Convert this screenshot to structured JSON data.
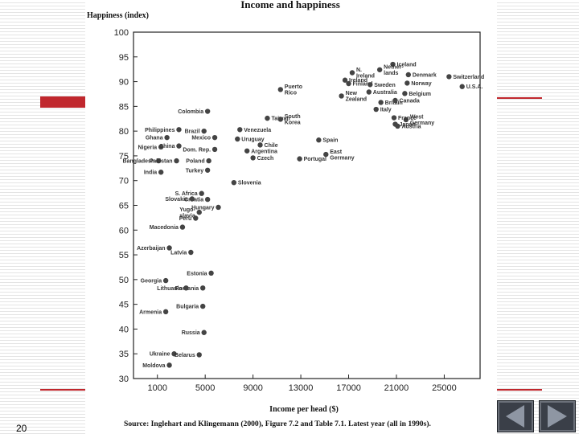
{
  "slide": {
    "page_number": "20",
    "accent_color": "#c0272d",
    "nav": {
      "prev_icon": "triangle-left-icon",
      "next_icon": "triangle-right-icon"
    }
  },
  "chart_data": {
    "type": "scatter",
    "title": "Income and happiness",
    "ylabel": "Happiness (index)",
    "xlabel": "Income per head ($)",
    "source": "Source: Inglehart and Klingemann (2000), Figure 7.2 and Table 7.1. Latest year (all in 1990s).",
    "xlim": [
      -1000,
      28000
    ],
    "ylim": [
      30,
      100
    ],
    "xticks": [
      1000,
      5000,
      9000,
      13000,
      17000,
      21000,
      25000
    ],
    "xtick_labels": [
      "1000",
      "5000",
      "9000",
      "13000",
      "17000",
      "21000",
      "25000"
    ],
    "yticks": [
      30,
      35,
      40,
      45,
      50,
      55,
      60,
      65,
      70,
      75,
      80,
      85,
      90,
      95,
      100
    ],
    "ytick_labels": [
      "30",
      "35",
      "40",
      "45",
      "50",
      "55",
      "60",
      "65",
      "70",
      "75",
      "80",
      "85",
      "90",
      "95",
      "100"
    ],
    "grid": false,
    "point_color": "#444444",
    "points": [
      {
        "label": "Iceland",
        "x": 20700,
        "y": 93.5
      },
      {
        "label": "N. Ireland",
        "x": 17300,
        "y": 91.8
      },
      {
        "label": "Nether- lands",
        "x": 19600,
        "y": 92.4
      },
      {
        "label": "Denmark",
        "x": 22000,
        "y": 91.4
      },
      {
        "label": "Switzerland",
        "x": 25400,
        "y": 91.0
      },
      {
        "label": "Ireland",
        "x": 16700,
        "y": 90.3
      },
      {
        "label": "Finland",
        "x": 17000,
        "y": 89.6
      },
      {
        "label": "Sweden",
        "x": 18800,
        "y": 89.4
      },
      {
        "label": "Norway",
        "x": 21900,
        "y": 89.7
      },
      {
        "label": "U.S.A.",
        "x": 26500,
        "y": 89.0
      },
      {
        "label": "Puerto Rico",
        "x": 11300,
        "y": 88.4
      },
      {
        "label": "Australia",
        "x": 18700,
        "y": 87.9
      },
      {
        "label": "New Zealand",
        "x": 16400,
        "y": 87.1
      },
      {
        "label": "Belgium",
        "x": 21700,
        "y": 87.6
      },
      {
        "label": "Britain",
        "x": 19700,
        "y": 85.8
      },
      {
        "label": "Canada",
        "x": 20900,
        "y": 86.2
      },
      {
        "label": "Italy",
        "x": 19300,
        "y": 84.4
      },
      {
        "label": "West Germany",
        "x": 21800,
        "y": 82.3
      },
      {
        "label": "France",
        "x": 20800,
        "y": 82.7
      },
      {
        "label": "Japan",
        "x": 20900,
        "y": 81.4
      },
      {
        "label": "Austria",
        "x": 21100,
        "y": 81.0
      },
      {
        "label": "Colombia",
        "x": 5200,
        "y": 84.0
      },
      {
        "label": "Taiwan",
        "x": 10200,
        "y": 82.6
      },
      {
        "label": "South Korea",
        "x": 11300,
        "y": 82.4
      },
      {
        "label": "Philippines",
        "x": 2800,
        "y": 80.3
      },
      {
        "label": "Brazil",
        "x": 4900,
        "y": 80.0
      },
      {
        "label": "Venezuela",
        "x": 7900,
        "y": 80.3
      },
      {
        "label": "Ghana",
        "x": 1800,
        "y": 78.7
      },
      {
        "label": "Mexico",
        "x": 5800,
        "y": 78.7
      },
      {
        "label": "Uruguay",
        "x": 7700,
        "y": 78.4
      },
      {
        "label": "Spain",
        "x": 14500,
        "y": 78.2
      },
      {
        "label": "Nigeria",
        "x": 1300,
        "y": 76.8
      },
      {
        "label": "China",
        "x": 2800,
        "y": 77.0
      },
      {
        "label": "Chile",
        "x": 9600,
        "y": 77.2
      },
      {
        "label": "Dom. Rep.",
        "x": 5800,
        "y": 76.3
      },
      {
        "label": "Argentina",
        "x": 8500,
        "y": 76.0
      },
      {
        "label": "East Germany",
        "x": 15100,
        "y": 75.3
      },
      {
        "label": "Portugal",
        "x": 12900,
        "y": 74.4
      },
      {
        "label": "Bangladesh",
        "x": 1100,
        "y": 74.0
      },
      {
        "label": "Pakistan",
        "x": 2600,
        "y": 74.0
      },
      {
        "label": "Poland",
        "x": 5300,
        "y": 74.0
      },
      {
        "label": "Czech",
        "x": 9000,
        "y": 74.6
      },
      {
        "label": "India",
        "x": 1300,
        "y": 71.7
      },
      {
        "label": "Turkey",
        "x": 5200,
        "y": 72.1
      },
      {
        "label": "Slovenia",
        "x": 7400,
        "y": 69.6
      },
      {
        "label": "S. Africa",
        "x": 4700,
        "y": 67.4
      },
      {
        "label": "Croatia",
        "x": 5200,
        "y": 66.2
      },
      {
        "label": "Slovakia",
        "x": 3900,
        "y": 66.3
      },
      {
        "label": "Yugo- slavia",
        "x": 4500,
        "y": 63.6
      },
      {
        "label": "Hungary",
        "x": 6100,
        "y": 64.6
      },
      {
        "label": "Macedonia",
        "x": 3100,
        "y": 60.6
      },
      {
        "label": "Peru",
        "x": 4200,
        "y": 62.4
      },
      {
        "label": "Azerbaijan",
        "x": 2000,
        "y": 56.4
      },
      {
        "label": "Latvia",
        "x": 3800,
        "y": 55.5
      },
      {
        "label": "Estonia",
        "x": 5500,
        "y": 51.3
      },
      {
        "label": "Georgia",
        "x": 1700,
        "y": 49.8
      },
      {
        "label": "Romania",
        "x": 4800,
        "y": 48.3
      },
      {
        "label": "Lithuania",
        "x": 3400,
        "y": 48.3
      },
      {
        "label": "Armenia",
        "x": 1700,
        "y": 43.5
      },
      {
        "label": "Bulgaria",
        "x": 4800,
        "y": 44.6
      },
      {
        "label": "Russia",
        "x": 4900,
        "y": 39.3
      },
      {
        "label": "Ukraine",
        "x": 2400,
        "y": 35.0
      },
      {
        "label": "Belarus",
        "x": 4500,
        "y": 34.8
      },
      {
        "label": "Moldova",
        "x": 2000,
        "y": 32.7
      }
    ]
  }
}
